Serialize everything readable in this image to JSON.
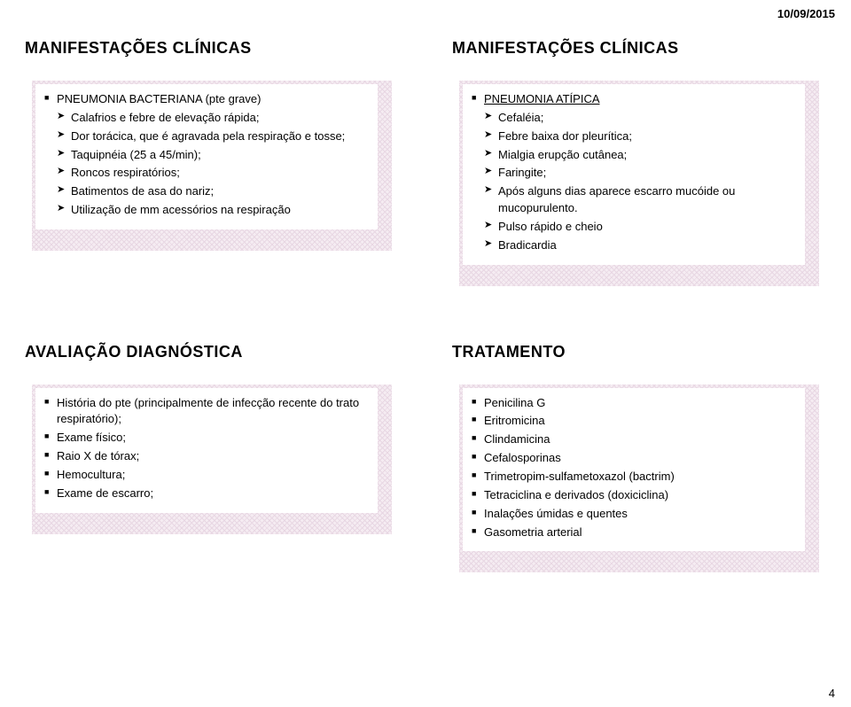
{
  "date": "10/09/2015",
  "page_number": "4",
  "slides": {
    "top_left": {
      "title": "MANIFESTAÇÕES CLÍNICAS",
      "items": [
        {
          "level": 1,
          "text": "PNEUMONIA BACTERIANA (pte grave)"
        },
        {
          "level": 2,
          "text": "Calafrios e febre de elevação rápida;"
        },
        {
          "level": 2,
          "text": "Dor torácica, que é agravada pela respiração e tosse;"
        },
        {
          "level": 2,
          "text": "Taquipnéia (25 a 45/min);"
        },
        {
          "level": 2,
          "text": "Roncos respiratórios;"
        },
        {
          "level": 2,
          "text": "Batimentos de asa do nariz;"
        },
        {
          "level": 2,
          "text": "Utilização de mm acessórios na respiração"
        }
      ]
    },
    "top_right": {
      "title": "MANIFESTAÇÕES CLÍNICAS",
      "items": [
        {
          "level": 1,
          "text": "PNEUMONIA ATÍPICA",
          "underline": true
        },
        {
          "level": 2,
          "text": "Cefaléia;"
        },
        {
          "level": 2,
          "text": "Febre baixa dor pleurítica;"
        },
        {
          "level": 2,
          "text": "Mialgia erupção cutânea;"
        },
        {
          "level": 2,
          "text": "Faringite;"
        },
        {
          "level": 2,
          "text": "Após alguns dias aparece escarro mucóide ou mucopurulento."
        },
        {
          "level": 2,
          "text": "Pulso rápido e cheio"
        },
        {
          "level": 2,
          "text": "Bradicardia"
        }
      ]
    },
    "bottom_left": {
      "title": "AVALIAÇÃO DIAGNÓSTICA",
      "items": [
        {
          "level": 1,
          "text": "História do pte (principalmente de infecção recente do trato respiratório);"
        },
        {
          "level": 1,
          "text": "Exame físico;"
        },
        {
          "level": 1,
          "text": "Raio X de tórax;"
        },
        {
          "level": 1,
          "text": "Hemocultura;"
        },
        {
          "level": 1,
          "text": "Exame de escarro;"
        }
      ]
    },
    "bottom_right": {
      "title": "TRATAMENTO",
      "items": [
        {
          "level": 1,
          "text": "Penicilina G"
        },
        {
          "level": 1,
          "text": "Eritromicina"
        },
        {
          "level": 1,
          "text": "Clindamicina"
        },
        {
          "level": 1,
          "text": "Cefalosporinas"
        },
        {
          "level": 1,
          "text": "Trimetropim-sulfametoxazol (bactrim)"
        },
        {
          "level": 1,
          "text": "Tetraciclina e derivados (doxiciclina)"
        },
        {
          "level": 1,
          "text": "Inalações úmidas e quentes"
        },
        {
          "level": 1,
          "text": "Gasometria arterial"
        }
      ]
    }
  }
}
